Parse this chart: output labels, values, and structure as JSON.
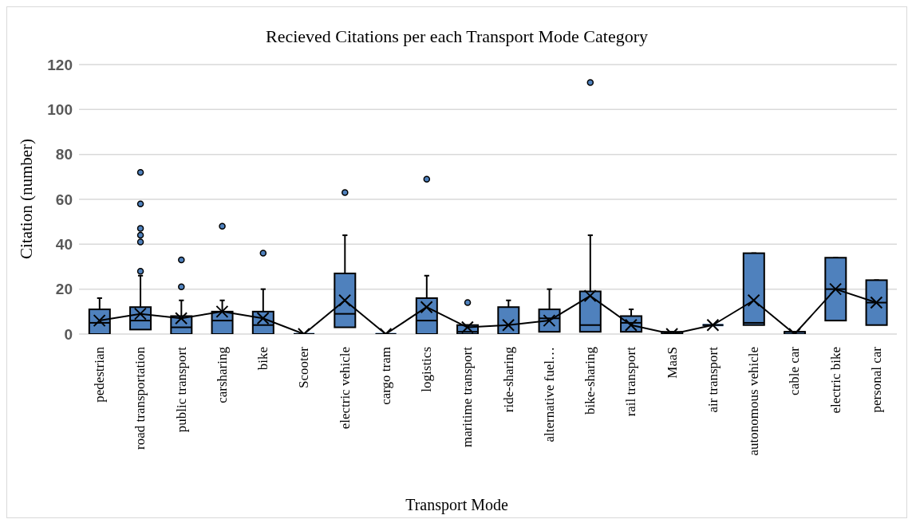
{
  "chart_data": {
    "type": "box",
    "title": "Recieved Citations per each Transport Mode Category",
    "xlabel": "Transport Mode",
    "ylabel": "Citation (number)",
    "categories": [
      "pedestrian",
      "road transportation",
      "public transport",
      "carsharing",
      "bike",
      "Scooter",
      "electric vehicle",
      "cargo tram",
      "logistics",
      "maritime transport",
      "ride-sharing",
      "alternative fuel…",
      "bike-sharing",
      "rail transport",
      "MaaS",
      "air transport",
      "autonomous vehicle",
      "cable car",
      "electric bike",
      "personal car"
    ],
    "ylim": [
      0,
      120
    ],
    "yticks": [
      0,
      20,
      40,
      60,
      80,
      100,
      120
    ],
    "grid": "y",
    "legend": false,
    "series": [
      {
        "type": "box",
        "color": "#4f81bd",
        "boxes": [
          {
            "low": 0,
            "q1": 0,
            "median": 5,
            "q3": 11,
            "high": 16
          },
          {
            "low": 2,
            "q1": 2,
            "median": 6,
            "q3": 12,
            "high": 26,
            "outliers": [
              28,
              41,
              44,
              47,
              58,
              72
            ]
          },
          {
            "low": 0,
            "q1": 0,
            "median": 3,
            "q3": 8,
            "high": 15,
            "outliers": [
              21,
              33
            ]
          },
          {
            "low": 0,
            "q1": 0,
            "median": 6,
            "q3": 10,
            "high": 15,
            "outliers": [
              48
            ]
          },
          {
            "low": 0,
            "q1": 0,
            "median": 4,
            "q3": 10,
            "high": 20,
            "outliers": [
              36
            ]
          },
          {
            "low": 0,
            "q1": 0,
            "median": 0,
            "q3": 0,
            "high": 0
          },
          {
            "low": 3,
            "q1": 3,
            "median": 9,
            "q3": 27,
            "high": 44,
            "outliers": [
              63
            ]
          },
          {
            "low": 0,
            "q1": 0,
            "median": 0,
            "q3": 0,
            "high": 0
          },
          {
            "low": 0,
            "q1": 0,
            "median": 6,
            "q3": 16,
            "high": 26,
            "outliers": [
              69
            ]
          },
          {
            "low": 0,
            "q1": 0,
            "median": 1,
            "q3": 4,
            "high": 4,
            "outliers": [
              14
            ]
          },
          {
            "low": 0,
            "q1": 0,
            "median": 0,
            "q3": 12,
            "high": 15
          },
          {
            "low": 1,
            "q1": 1,
            "median": 7,
            "q3": 11,
            "high": 20
          },
          {
            "low": 1,
            "q1": 1,
            "median": 4,
            "q3": 19,
            "high": 44,
            "outliers": [
              112
            ]
          },
          {
            "low": 1,
            "q1": 1,
            "median": 5,
            "q3": 8,
            "high": 11
          },
          {
            "low": 0,
            "q1": 0,
            "median": 0,
            "q3": 1,
            "high": 1
          },
          {
            "low": 4,
            "q1": 4,
            "median": 4,
            "q3": 4,
            "high": 4
          },
          {
            "low": 4,
            "q1": 4,
            "median": 5,
            "q3": 36,
            "high": 36
          },
          {
            "low": 0,
            "q1": 0,
            "median": 1,
            "q3": 1,
            "high": 1
          },
          {
            "low": 6,
            "q1": 6,
            "median": 20,
            "q3": 34,
            "high": 34
          },
          {
            "low": 4,
            "q1": 4,
            "median": 14,
            "q3": 24,
            "high": 24
          }
        ]
      },
      {
        "type": "line",
        "color": "#000000",
        "marker": "cross",
        "values": [
          6,
          9,
          7,
          10,
          7,
          0,
          15,
          0,
          12,
          3,
          4,
          6,
          17,
          4,
          0,
          4,
          15,
          0,
          20,
          14
        ]
      }
    ]
  }
}
